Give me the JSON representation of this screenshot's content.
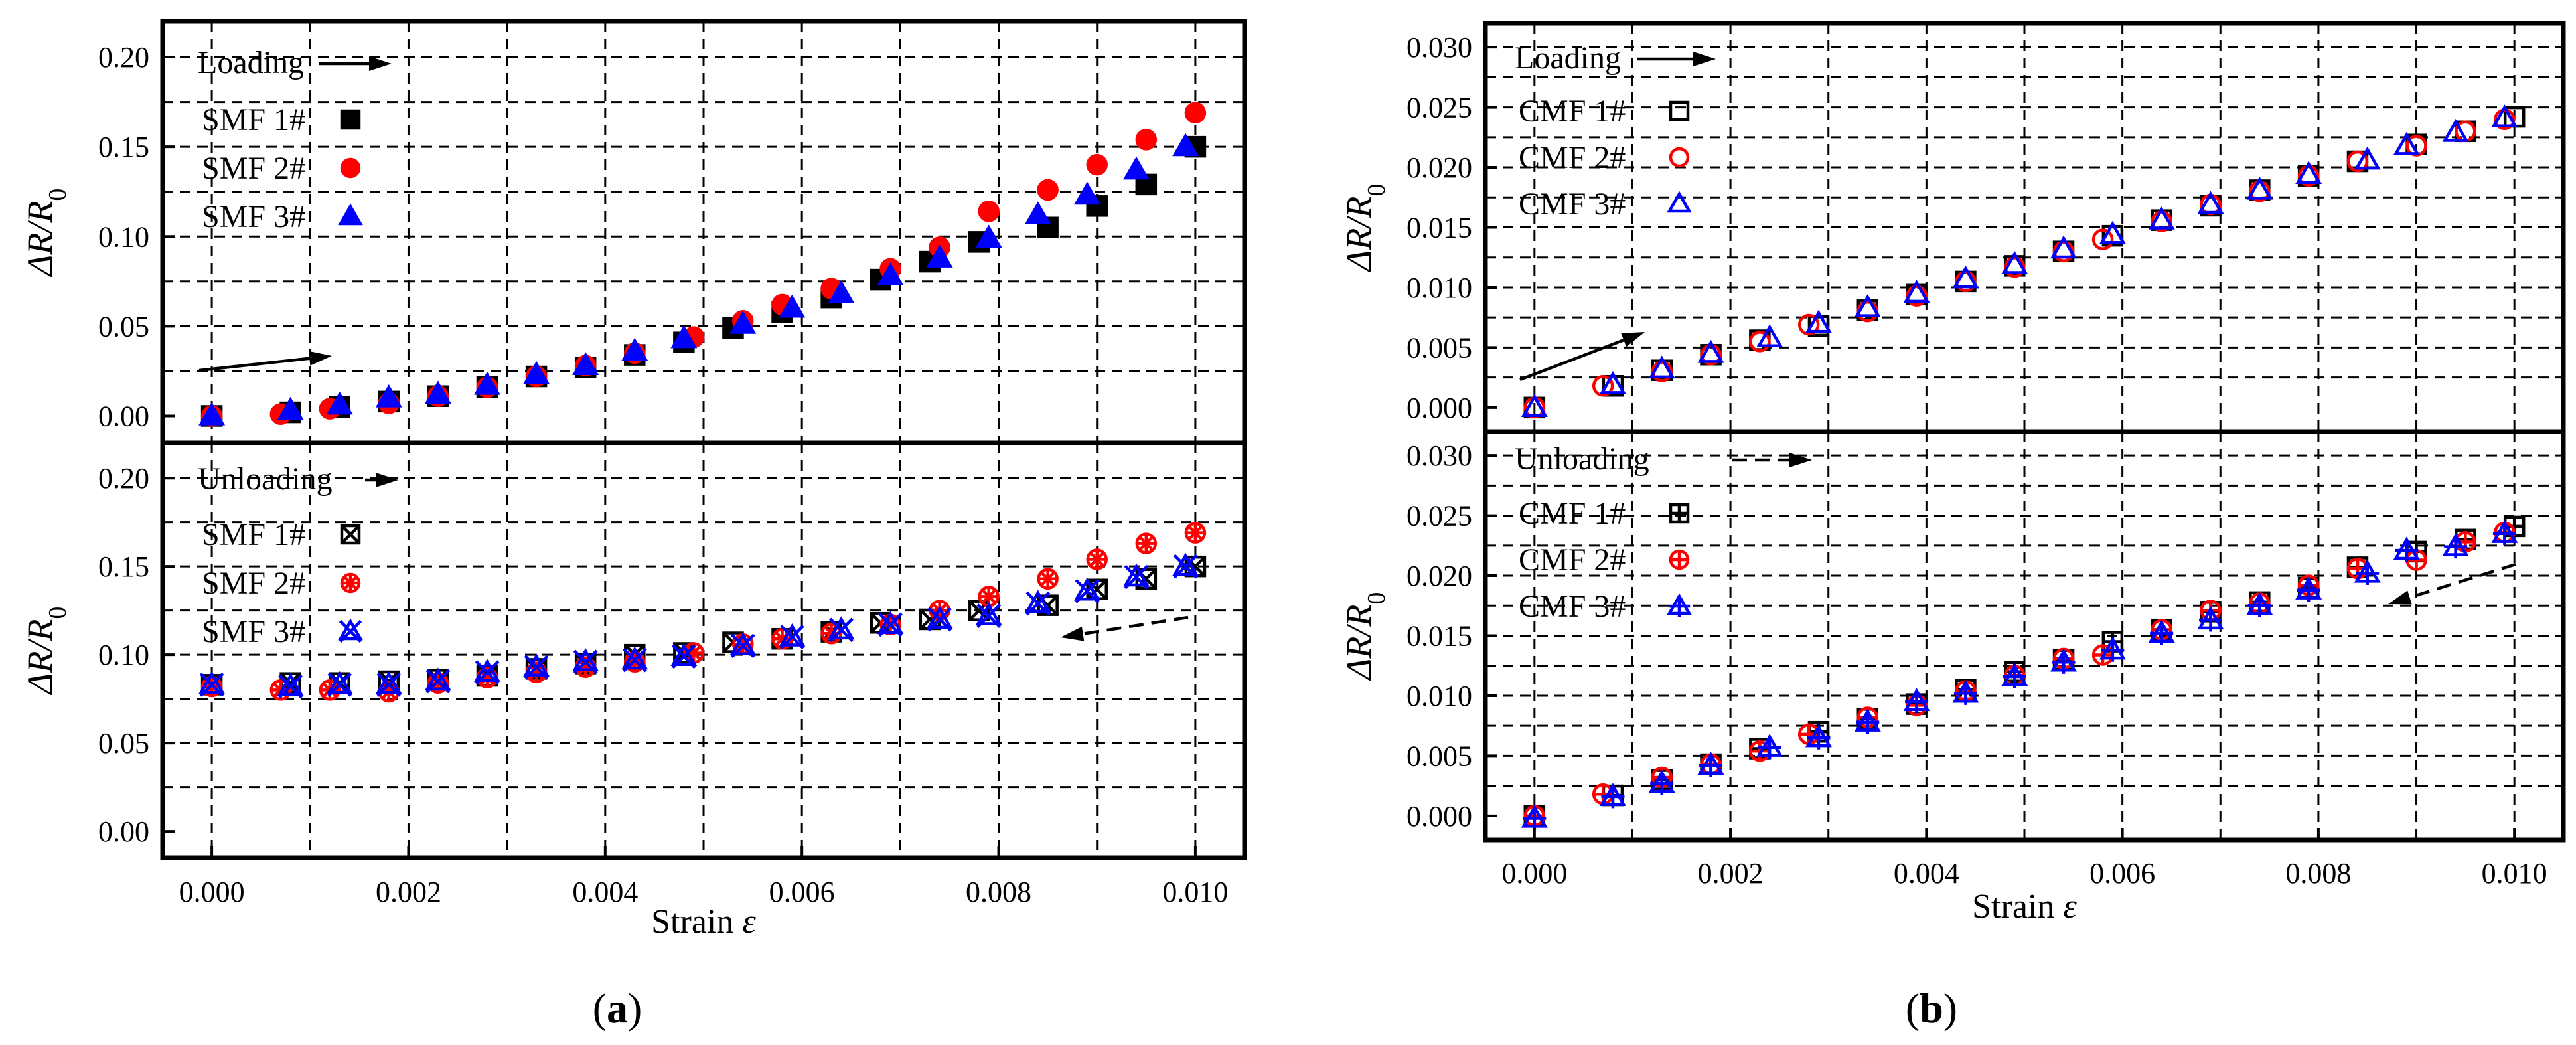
{
  "panel_labels": [
    "a",
    "b"
  ],
  "chart_data": [
    {
      "type": "scatter",
      "panel": "a",
      "xlabel": "Strain",
      "xlabel_symbol": "ε",
      "ylabel": "ΔR/R",
      "ylabel_sub": "0",
      "xlim": [
        -0.0005,
        0.0105
      ],
      "xticks": [
        "0.000",
        "0.002",
        "0.004",
        "0.006",
        "0.008",
        "0.010"
      ],
      "subplots": [
        {
          "name": "loading",
          "title": "Loading",
          "ylim": [
            -0.015,
            0.22
          ],
          "yticks": [
            "0.00",
            "0.05",
            "0.10",
            "0.15",
            "0.20"
          ],
          "series": [
            {
              "name": "SMF 1#",
              "marker": "square-filled",
              "color": "#000000",
              "x": [
                0,
                0.0008,
                0.0013,
                0.0018,
                0.0023,
                0.0028,
                0.0033,
                0.0038,
                0.0043,
                0.0048,
                0.0053,
                0.0058,
                0.0063,
                0.0068,
                0.0073,
                0.0078,
                0.0085,
                0.009,
                0.0095,
                0.01
              ],
              "y": [
                0,
                0.002,
                0.005,
                0.008,
                0.011,
                0.016,
                0.022,
                0.027,
                0.034,
                0.041,
                0.049,
                0.058,
                0.066,
                0.076,
                0.086,
                0.097,
                0.105,
                0.117,
                0.129,
                0.15
              ]
            },
            {
              "name": "SMF 2#",
              "marker": "circle-filled",
              "color": "#ff0000",
              "x": [
                0,
                0.0007,
                0.0012,
                0.0018,
                0.0023,
                0.0028,
                0.0033,
                0.0038,
                0.0043,
                0.0049,
                0.0054,
                0.0058,
                0.0063,
                0.0069,
                0.0074,
                0.0079,
                0.0085,
                0.009,
                0.0095,
                0.01
              ],
              "y": [
                0,
                0.001,
                0.004,
                0.007,
                0.011,
                0.016,
                0.022,
                0.028,
                0.035,
                0.044,
                0.053,
                0.062,
                0.071,
                0.082,
                0.094,
                0.114,
                0.126,
                0.14,
                0.154,
                0.169
              ]
            },
            {
              "name": "SMF 3#",
              "marker": "triangle-filled",
              "color": "#0000ff",
              "x": [
                0,
                0.0008,
                0.0013,
                0.0018,
                0.0023,
                0.0028,
                0.0033,
                0.0038,
                0.0043,
                0.0048,
                0.0054,
                0.0059,
                0.0064,
                0.0069,
                0.0074,
                0.0079,
                0.0084,
                0.0089,
                0.0094,
                0.0099
              ],
              "y": [
                0,
                0.003,
                0.006,
                0.01,
                0.012,
                0.017,
                0.023,
                0.028,
                0.036,
                0.043,
                0.051,
                0.06,
                0.068,
                0.078,
                0.088,
                0.099,
                0.112,
                0.123,
                0.137,
                0.15
              ]
            }
          ]
        },
        {
          "name": "unloading",
          "title": "Unloading",
          "ylim": [
            -0.015,
            0.22
          ],
          "yticks": [
            "0.00",
            "0.05",
            "0.10",
            "0.15",
            "0.20"
          ],
          "series": [
            {
              "name": "SMF 1#",
              "marker": "square-crossed",
              "color": "#000000",
              "x": [
                0,
                0.0008,
                0.0013,
                0.0018,
                0.0023,
                0.0028,
                0.0033,
                0.0038,
                0.0043,
                0.0048,
                0.0053,
                0.0058,
                0.0063,
                0.0068,
                0.0073,
                0.0078,
                0.0085,
                0.009,
                0.0095,
                0.01
              ],
              "y": [
                0.083,
                0.084,
                0.084,
                0.085,
                0.086,
                0.088,
                0.092,
                0.095,
                0.1,
                0.101,
                0.107,
                0.109,
                0.113,
                0.118,
                0.12,
                0.125,
                0.128,
                0.137,
                0.143,
                0.15
              ]
            },
            {
              "name": "SMF 2#",
              "marker": "circle-crossed",
              "color": "#ff0000",
              "x": [
                0,
                0.0007,
                0.0012,
                0.0018,
                0.0023,
                0.0028,
                0.0033,
                0.0038,
                0.0043,
                0.0049,
                0.0054,
                0.0058,
                0.0063,
                0.0069,
                0.0074,
                0.0079,
                0.0085,
                0.009,
                0.0095,
                0.01
              ],
              "y": [
                0.082,
                0.08,
                0.08,
                0.079,
                0.084,
                0.087,
                0.09,
                0.093,
                0.096,
                0.101,
                0.106,
                0.109,
                0.112,
                0.117,
                0.125,
                0.133,
                0.143,
                0.154,
                0.163,
                0.169
              ]
            },
            {
              "name": "SMF 3#",
              "marker": "x-triangle",
              "color": "#0000ff",
              "x": [
                0,
                0.0008,
                0.0013,
                0.0018,
                0.0023,
                0.0028,
                0.0033,
                0.0038,
                0.0043,
                0.0048,
                0.0054,
                0.0059,
                0.0064,
                0.0069,
                0.0074,
                0.0079,
                0.0084,
                0.0089,
                0.0094,
                0.0099
              ],
              "y": [
                0.083,
                0.082,
                0.083,
                0.083,
                0.085,
                0.09,
                0.093,
                0.096,
                0.097,
                0.099,
                0.105,
                0.11,
                0.114,
                0.117,
                0.12,
                0.122,
                0.129,
                0.136,
                0.144,
                0.15
              ]
            }
          ]
        }
      ]
    },
    {
      "type": "scatter",
      "panel": "b",
      "xlabel": "Strain",
      "xlabel_symbol": "ε",
      "ylabel": "ΔR/R",
      "ylabel_sub": "0",
      "xlim": [
        -0.0005,
        0.0105
      ],
      "xticks": [
        "0.000",
        "0.002",
        "0.004",
        "0.006",
        "0.008",
        "0.010"
      ],
      "subplots": [
        {
          "name": "loading",
          "title": "Loading",
          "ylim": [
            -0.002,
            0.032
          ],
          "yticks": [
            "0.000",
            "0.005",
            "0.010",
            "0.015",
            "0.020",
            "0.025",
            "0.030"
          ],
          "series": [
            {
              "name": "CMF 1#",
              "marker": "square-open",
              "color": "#000000",
              "x": [
                0,
                0.0008,
                0.0013,
                0.0018,
                0.0023,
                0.0029,
                0.0034,
                0.0039,
                0.0044,
                0.0049,
                0.0054,
                0.0059,
                0.0064,
                0.0069,
                0.0074,
                0.0079,
                0.0084,
                0.009,
                0.0095,
                0.01
              ],
              "y": [
                0,
                0.0018,
                0.0031,
                0.0044,
                0.0056,
                0.0068,
                0.0081,
                0.0094,
                0.0105,
                0.0118,
                0.013,
                0.0143,
                0.0156,
                0.0168,
                0.0181,
                0.0193,
                0.0205,
                0.0219,
                0.023,
                0.0242
              ]
            },
            {
              "name": "CMF 2#",
              "marker": "circle-open",
              "color": "#ff0000",
              "x": [
                0,
                0.0007,
                0.0013,
                0.0018,
                0.0023,
                0.0028,
                0.0034,
                0.0039,
                0.0044,
                0.0049,
                0.0054,
                0.0058,
                0.0064,
                0.0069,
                0.0074,
                0.0079,
                0.0084,
                0.009,
                0.0095,
                0.0099
              ],
              "y": [
                0,
                0.0018,
                0.003,
                0.0044,
                0.0055,
                0.0069,
                0.008,
                0.0093,
                0.0105,
                0.0117,
                0.013,
                0.014,
                0.0155,
                0.0169,
                0.018,
                0.0193,
                0.0205,
                0.0218,
                0.023,
                0.024
              ]
            },
            {
              "name": "CMF 3#",
              "marker": "triangle-open",
              "color": "#0000ff",
              "x": [
                0,
                0.0008,
                0.0013,
                0.0018,
                0.0024,
                0.0029,
                0.0034,
                0.0039,
                0.0044,
                0.0049,
                0.0054,
                0.0059,
                0.0064,
                0.0069,
                0.0074,
                0.0079,
                0.0085,
                0.0089,
                0.0094,
                0.0099
              ],
              "y": [
                0,
                0.0019,
                0.0032,
                0.0045,
                0.0058,
                0.007,
                0.0083,
                0.0095,
                0.0107,
                0.0119,
                0.0132,
                0.0144,
                0.0156,
                0.0169,
                0.0181,
                0.0194,
                0.0206,
                0.0218,
                0.0229,
                0.0241
              ]
            }
          ]
        },
        {
          "name": "unloading",
          "title": "Unloading",
          "ylim": [
            -0.002,
            0.032
          ],
          "yticks": [
            "0.000",
            "0.005",
            "0.010",
            "0.015",
            "0.020",
            "0.025",
            "0.030"
          ],
          "series": [
            {
              "name": "CMF 1#",
              "marker": "square-plus",
              "color": "#000000",
              "x": [
                0,
                0.0008,
                0.0013,
                0.0018,
                0.0023,
                0.0029,
                0.0034,
                0.0039,
                0.0044,
                0.0049,
                0.0054,
                0.0059,
                0.0064,
                0.0069,
                0.0074,
                0.0079,
                0.0084,
                0.009,
                0.0095,
                0.01
              ],
              "y": [
                0,
                0.0017,
                0.003,
                0.0043,
                0.0056,
                0.007,
                0.0081,
                0.0093,
                0.0105,
                0.012,
                0.013,
                0.0145,
                0.0155,
                0.017,
                0.0178,
                0.019,
                0.0207,
                0.022,
                0.023,
                0.0241
              ]
            },
            {
              "name": "CMF 2#",
              "marker": "circle-plus",
              "color": "#ff0000",
              "x": [
                0,
                0.0007,
                0.0013,
                0.0018,
                0.0023,
                0.0028,
                0.0034,
                0.0039,
                0.0044,
                0.0049,
                0.0054,
                0.0058,
                0.0064,
                0.0069,
                0.0074,
                0.0079,
                0.0084,
                0.009,
                0.0095,
                0.0099
              ],
              "y": [
                0,
                0.0018,
                0.0032,
                0.0043,
                0.0054,
                0.0068,
                0.0082,
                0.0092,
                0.0104,
                0.0117,
                0.0131,
                0.0134,
                0.0155,
                0.0171,
                0.0177,
                0.0192,
                0.0206,
                0.0213,
                0.0228,
                0.0236
              ]
            },
            {
              "name": "CMF 3#",
              "marker": "triangle-plus",
              "color": "#0000ff",
              "x": [
                0,
                0.0008,
                0.0013,
                0.0018,
                0.0024,
                0.0029,
                0.0034,
                0.0039,
                0.0044,
                0.0049,
                0.0054,
                0.0059,
                0.0064,
                0.0069,
                0.0074,
                0.0079,
                0.0085,
                0.0089,
                0.0094,
                0.0099
              ],
              "y": [
                -0.0002,
                0.0016,
                0.0027,
                0.0042,
                0.0057,
                0.0065,
                0.0078,
                0.0095,
                0.0102,
                0.0116,
                0.0128,
                0.0138,
                0.0152,
                0.0163,
                0.0175,
                0.0188,
                0.0202,
                0.0221,
                0.0224,
                0.0235
              ]
            }
          ]
        }
      ]
    }
  ]
}
